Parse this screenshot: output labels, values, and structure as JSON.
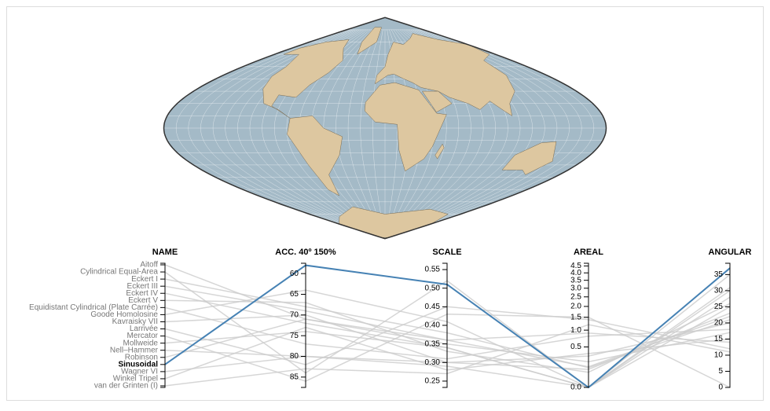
{
  "chart_data": {
    "type": "parallel",
    "name_label": "NAME",
    "selected": "Sinusoidal",
    "dimensions": [
      {
        "label": "ACC. 40º 150%",
        "lim": [
          57.5,
          87.5
        ],
        "reverse": true,
        "ticks": [
          60,
          65,
          70,
          75,
          80,
          85
        ]
      },
      {
        "label": "SCALE",
        "lim": [
          0.233,
          0.567
        ],
        "ticks": [
          0.25,
          {
            "value": 0.3,
            "label": "0.30"
          },
          0.35,
          {
            "value": 0.4,
            "label": "0.40"
          },
          0.45,
          {
            "value": 0.5,
            "label": "0.50"
          },
          0.55
        ]
      },
      {
        "label": "AREAL",
        "lim": [
          0,
          4.7
        ],
        "scale": "sqrt",
        "ticks": [
          {
            "value": 0,
            "label": "0.0"
          },
          0.5,
          {
            "value": 1,
            "label": "1.0"
          },
          1.5,
          {
            "value": 2,
            "label": "2.0"
          },
          2.5,
          {
            "value": 3,
            "label": "3.0"
          },
          3.5,
          {
            "value": 4,
            "label": "4.0"
          },
          4.5
        ]
      },
      {
        "label": "ANGULAR",
        "lim": [
          0,
          38.5
        ],
        "ticks": [
          0,
          5,
          10,
          15,
          20,
          25,
          30,
          35
        ]
      }
    ],
    "series": [
      {
        "name": "Aitoff",
        "color": "#cccccc",
        "values": [
          71,
          0.36,
          0.9,
          14
        ]
      },
      {
        "name": "Cylindrical Equal-Area",
        "color": "#cccccc",
        "values": [
          84,
          0.52,
          0,
          35
        ]
      },
      {
        "name": "Eckert I",
        "color": "#cccccc",
        "values": [
          68,
          0.38,
          0.12,
          21
        ]
      },
      {
        "name": "Eckert III",
        "color": "#cccccc",
        "values": [
          69,
          0.36,
          0.13,
          22
        ]
      },
      {
        "name": "Eckert IV",
        "color": "#cccccc",
        "values": [
          72,
          0.34,
          0,
          25
        ]
      },
      {
        "name": "Eckert V",
        "color": "#cccccc",
        "values": [
          67,
          0.33,
          0.07,
          26
        ]
      },
      {
        "name": "Equidistant Cylindrical (Plate Carrée)",
        "color": "#cccccc",
        "values": [
          77,
          0.31,
          0.8,
          18
        ]
      },
      {
        "name": "Goode Homolosine",
        "color": "#cccccc",
        "values": [
          64,
          0.41,
          0,
          30
        ]
      },
      {
        "name": "Kavraisky VII",
        "color": "#cccccc",
        "values": [
          70,
          0.3,
          0.3,
          20
        ]
      },
      {
        "name": "Larrivée",
        "color": "#cccccc",
        "values": [
          82,
          0.45,
          1.4,
          12
        ]
      },
      {
        "name": "Mercator",
        "color": "#cccccc",
        "values": [
          86,
          0.43,
          1.5,
          0
        ]
      },
      {
        "name": "Mollweide",
        "color": "#cccccc",
        "values": [
          74,
          0.34,
          0,
          28
        ]
      },
      {
        "name": "Nell–Hammer",
        "color": "#cccccc",
        "values": [
          80,
          0.29,
          0,
          31
        ]
      },
      {
        "name": "Robinson",
        "color": "#cccccc",
        "values": [
          71,
          0.35,
          0.2,
          17
        ]
      },
      {
        "name": "Sinusoidal",
        "color": "#4682b4",
        "values": [
          58,
          0.51,
          0,
          37
        ]
      },
      {
        "name": "Wagner VI",
        "color": "#cccccc",
        "values": [
          80,
          0.3,
          0.1,
          23
        ]
      },
      {
        "name": "Winkel Tripel",
        "color": "#cccccc",
        "values": [
          73,
          0.28,
          0.35,
          15
        ]
      },
      {
        "name": "van der Grinten (I)",
        "color": "#cccccc",
        "values": [
          83,
          0.27,
          1.2,
          11
        ]
      }
    ]
  }
}
